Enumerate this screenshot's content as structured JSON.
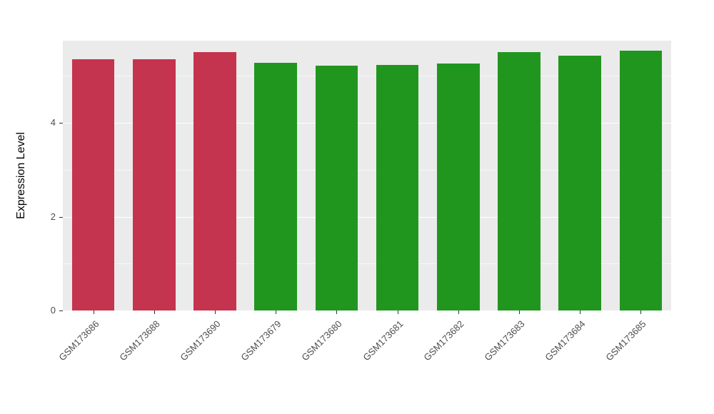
{
  "chart_data": {
    "type": "bar",
    "title": "",
    "xlabel": "",
    "ylabel": "Expression Level",
    "categories": [
      "GSM173686",
      "GSM173688",
      "GSM173690",
      "GSM173679",
      "GSM173680",
      "GSM173681",
      "GSM173682",
      "GSM173683",
      "GSM173684",
      "GSM173685"
    ],
    "values": [
      5.35,
      5.35,
      5.5,
      5.28,
      5.22,
      5.23,
      5.27,
      5.5,
      5.43,
      5.53
    ],
    "bar_groups": [
      "red",
      "red",
      "red",
      "green",
      "green",
      "green",
      "green",
      "green",
      "green",
      "green"
    ],
    "palette": {
      "red": "#C5344E",
      "green": "#21961F"
    },
    "ylim": [
      0,
      5.75
    ],
    "yticks": [
      0,
      2,
      4
    ],
    "minor_yticks": [
      1,
      3,
      5
    ],
    "panel_background": "#EBEBEB",
    "grid": "horizontal white major and minor lines",
    "legend": "none",
    "tick_label_color": "#4D4D4D"
  }
}
